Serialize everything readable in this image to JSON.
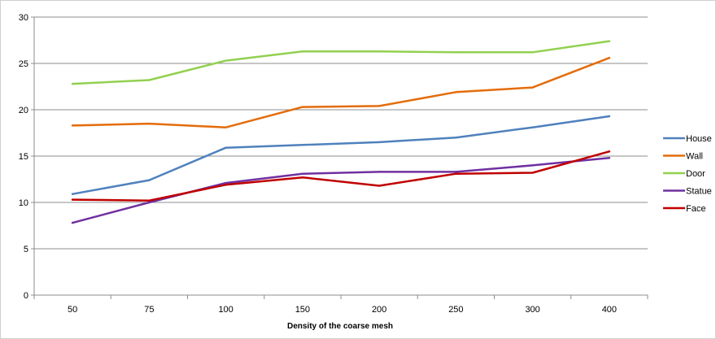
{
  "chart_data": {
    "type": "line",
    "title": "",
    "xlabel": "Density of the coarse mesh",
    "ylabel": "",
    "categories": [
      "50",
      "75",
      "100",
      "150",
      "200",
      "250",
      "300",
      "400"
    ],
    "ylim": [
      0,
      30
    ],
    "yticks": [
      0,
      5,
      10,
      15,
      20,
      25,
      30
    ],
    "grid": true,
    "legend_position": "right",
    "series": [
      {
        "name": "House",
        "color": "#4F81BD",
        "values": [
          10.9,
          12.4,
          15.9,
          16.2,
          16.5,
          17.0,
          18.1,
          19.3
        ]
      },
      {
        "name": "Wall",
        "color": "#E46C0A",
        "values": [
          18.3,
          18.5,
          18.1,
          20.3,
          20.4,
          21.9,
          22.4,
          25.6
        ]
      },
      {
        "name": "Door",
        "color": "#92D050",
        "values": [
          22.8,
          23.2,
          25.3,
          26.3,
          26.3,
          26.2,
          26.2,
          27.4
        ]
      },
      {
        "name": "Statue",
        "color": "#7030A0",
        "values": [
          7.8,
          10.0,
          12.1,
          13.1,
          13.3,
          13.3,
          14.0,
          14.8
        ]
      },
      {
        "name": "Face",
        "color": "#C00000",
        "values": [
          10.3,
          10.2,
          11.9,
          12.7,
          11.8,
          13.1,
          13.2,
          15.5
        ]
      }
    ]
  }
}
